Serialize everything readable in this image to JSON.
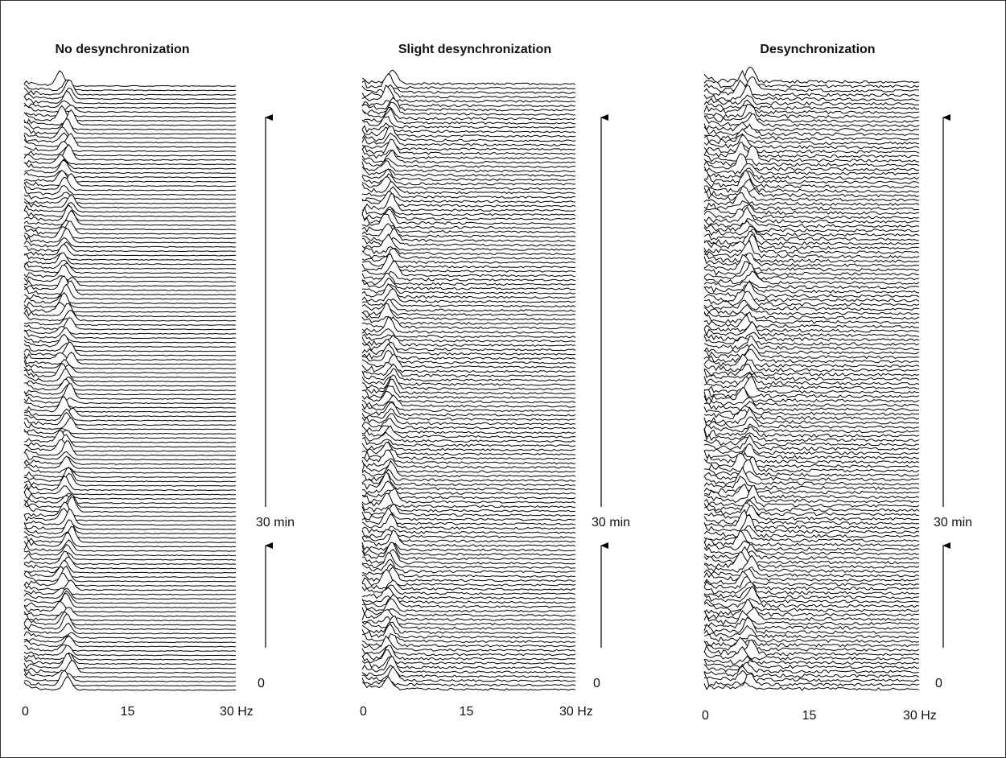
{
  "panels": [
    {
      "title": "No desynchronization",
      "x_ticks": [
        "0",
        "15",
        "30 Hz"
      ],
      "time_labels": [
        "30 min",
        "0"
      ]
    },
    {
      "title": "Slight desynchronization",
      "x_ticks": [
        "0",
        "15",
        "30 Hz"
      ],
      "time_labels": [
        "30 min",
        "0"
      ]
    },
    {
      "title": "Desynchronization",
      "x_ticks": [
        "0",
        "15",
        "30 Hz"
      ],
      "time_labels": [
        "30 min",
        "0"
      ]
    }
  ]
}
